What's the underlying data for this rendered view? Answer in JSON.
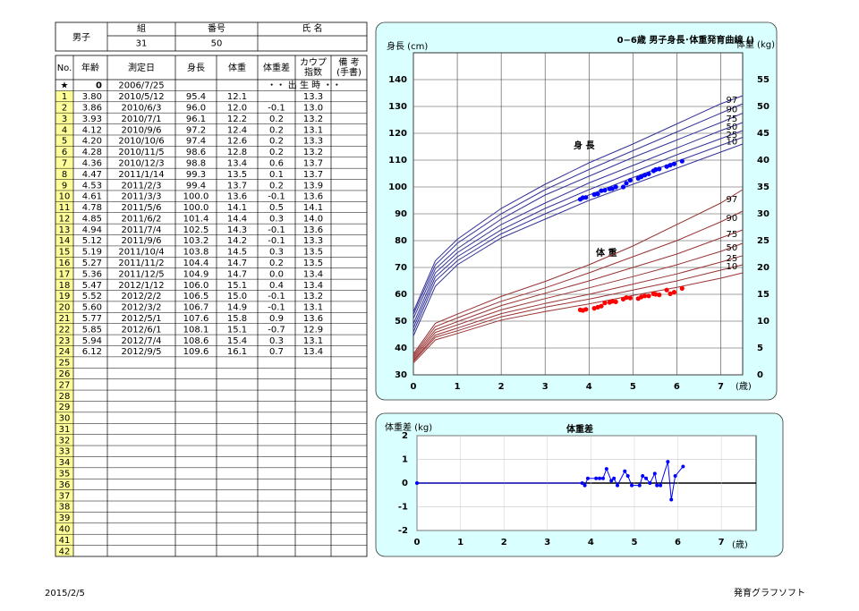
{
  "header": {
    "title": "男子",
    "fields": [
      {
        "label": "組",
        "value": "31"
      },
      {
        "label": "番号",
        "value": "50"
      },
      {
        "label": "氏 名"
      }
    ]
  },
  "table": {
    "columns": [
      "No.",
      "年齢",
      "測定日",
      "身長",
      "体重",
      "体重差",
      [
        "カウプ",
        "指数"
      ],
      [
        "備 考",
        "(手書)"
      ]
    ],
    "birth_row": {
      "no": "★",
      "age": "0",
      "date": "2006/7/25",
      "note": "・・ 出 生 時 ・・"
    },
    "rows": [
      [
        "1",
        "3.80",
        "2010/5/12",
        "95.4",
        "12.1",
        null,
        "13.3"
      ],
      [
        "2",
        "3.86",
        "2010/6/3",
        "96.0",
        "12.0",
        "-0.1",
        "13.0"
      ],
      [
        "3",
        "3.93",
        "2010/7/1",
        "96.1",
        "12.2",
        "0.2",
        "13.2"
      ],
      [
        "4",
        "4.12",
        "2010/9/6",
        "97.2",
        "12.4",
        "0.2",
        "13.1"
      ],
      [
        "5",
        "4.20",
        "2010/10/6",
        "97.4",
        "12.6",
        "0.2",
        "13.3"
      ],
      [
        "6",
        "4.28",
        "2010/11/5",
        "98.6",
        "12.8",
        "0.2",
        "13.2"
      ],
      [
        "7",
        "4.36",
        "2010/12/3",
        "98.8",
        "13.4",
        "0.6",
        "13.7"
      ],
      [
        "8",
        "4.47",
        "2011/1/14",
        "99.3",
        "13.5",
        "0.1",
        "13.7"
      ],
      [
        "9",
        "4.53",
        "2011/2/3",
        "99.4",
        "13.7",
        "0.2",
        "13.9"
      ],
      [
        "10",
        "4.61",
        "2011/3/3",
        "100.0",
        "13.6",
        "-0.1",
        "13.6"
      ],
      [
        "11",
        "4.78",
        "2011/5/6",
        "100.0",
        "14.1",
        "0.5",
        "14.1"
      ],
      [
        "12",
        "4.85",
        "2011/6/2",
        "101.4",
        "14.4",
        "0.3",
        "14.0"
      ],
      [
        "13",
        "4.94",
        "2011/7/4",
        "102.5",
        "14.3",
        "-0.1",
        "13.6"
      ],
      [
        "14",
        "5.12",
        "2011/9/6",
        "103.2",
        "14.2",
        "-0.1",
        "13.3"
      ],
      [
        "15",
        "5.19",
        "2011/10/4",
        "103.8",
        "14.5",
        "0.3",
        "13.5"
      ],
      [
        "16",
        "5.27",
        "2011/11/2",
        "104.4",
        "14.7",
        "0.2",
        "13.5"
      ],
      [
        "17",
        "5.36",
        "2011/12/5",
        "104.9",
        "14.7",
        "0.0",
        "13.4"
      ],
      [
        "18",
        "5.47",
        "2012/1/12",
        "106.0",
        "15.1",
        "0.4",
        "13.4"
      ],
      [
        "19",
        "5.52",
        "2012/2/2",
        "106.5",
        "15.0",
        "-0.1",
        "13.2"
      ],
      [
        "20",
        "5.60",
        "2012/3/2",
        "106.7",
        "14.9",
        "-0.1",
        "13.1"
      ],
      [
        "21",
        "5.77",
        "2012/5/1",
        "107.6",
        "15.8",
        "0.9",
        "13.6"
      ],
      [
        "22",
        "5.85",
        "2012/6/1",
        "108.1",
        "15.1",
        "-0.7",
        "12.9"
      ],
      [
        "23",
        "5.94",
        "2012/7/4",
        "108.6",
        "15.4",
        "0.3",
        "13.1"
      ],
      [
        "24",
        "6.12",
        "2012/9/5",
        "109.6",
        "16.1",
        "0.7",
        "13.4"
      ]
    ],
    "empty_rows": [
      "25",
      "26",
      "27",
      "28",
      "29",
      "30",
      "31",
      "32",
      "33",
      "34",
      "35",
      "36",
      "37",
      "38",
      "39",
      "40",
      "41",
      "42"
    ]
  },
  "growth_chart": {
    "type": "line",
    "title": "0−6歳 男子身長･体重発育曲線 ()",
    "y_label": "身長 (cm)",
    "y2_label": "体重 (kg)",
    "x_unit": "(歳)",
    "height_label": "身 長",
    "weight_label": "体 重",
    "xlim": [
      0,
      7.5
    ],
    "xticks": [
      0,
      1,
      2,
      3,
      4,
      5,
      6,
      7
    ],
    "ylim": [
      30,
      150
    ],
    "yticks": [
      30,
      40,
      50,
      60,
      70,
      80,
      90,
      100,
      110,
      120,
      130,
      140
    ],
    "y2lim": [
      0,
      60
    ],
    "y2ticks": [
      0,
      5,
      10,
      15,
      20,
      25,
      30,
      35,
      40,
      45,
      50,
      55
    ],
    "grid": true,
    "curve_x": [
      0,
      0.5,
      1,
      2,
      3,
      4,
      5,
      6,
      7,
      7.5
    ],
    "height_color": "#333399",
    "weight_color": "#993333",
    "height_curves": [
      {
        "name": "97",
        "values": [
          53.5,
          72.5,
          80.5,
          92,
          101,
          109,
          116,
          123.5,
          131,
          134
        ]
      },
      {
        "name": "90",
        "values": [
          52.5,
          71,
          79,
          90,
          99,
          106.5,
          113.5,
          120.5,
          127.5,
          131
        ]
      },
      {
        "name": "75",
        "values": [
          51,
          69.5,
          77,
          88,
          97,
          104,
          111,
          117.5,
          124,
          127.5
        ]
      },
      {
        "name": "50",
        "values": [
          49,
          68,
          75.5,
          86,
          94,
          101.5,
          108,
          114.5,
          121,
          124
        ]
      },
      {
        "name": "25",
        "values": [
          47.5,
          66.5,
          74,
          84,
          92,
          99,
          105.5,
          112,
          118,
          121
        ]
      },
      {
        "name": "10",
        "values": [
          46,
          65,
          72.5,
          82.5,
          90,
          97,
          103.5,
          109.5,
          115.5,
          118.5
        ]
      },
      {
        "values": [
          44.5,
          63,
          71,
          81,
          88,
          95,
          101,
          107,
          113,
          116
        ]
      }
    ],
    "weight_curves": [
      {
        "name": "97",
        "values": [
          3.9,
          9.6,
          11.3,
          14.6,
          17.4,
          20.5,
          24,
          28,
          32,
          34.5
        ]
      },
      {
        "name": "90",
        "values": [
          3.6,
          9,
          10.6,
          13.7,
          16.2,
          19,
          22,
          25,
          28.5,
          30.5
        ]
      },
      {
        "name": "75",
        "values": [
          3.3,
          8.4,
          9.9,
          12.9,
          15.2,
          17.5,
          20,
          22.5,
          25.5,
          27
        ]
      },
      {
        "name": "50",
        "values": [
          3.0,
          7.9,
          9.3,
          12.1,
          14.2,
          16.2,
          18.3,
          20.5,
          23,
          24.5
        ]
      },
      {
        "name": "25",
        "values": [
          2.7,
          7.4,
          8.7,
          11.4,
          13.3,
          15,
          16.9,
          18.8,
          21,
          22.2
        ]
      },
      {
        "name": "10",
        "values": [
          2.5,
          7,
          8.2,
          10.8,
          12.6,
          14.1,
          15.8,
          17.5,
          19.5,
          20.5
        ]
      },
      {
        "values": [
          2.2,
          6.5,
          7.7,
          10.2,
          11.8,
          13.2,
          14.8,
          16.3,
          18,
          19
        ]
      }
    ],
    "x": [
      3.8,
      3.86,
      3.93,
      4.12,
      4.2,
      4.28,
      4.36,
      4.47,
      4.53,
      4.61,
      4.78,
      4.85,
      4.94,
      5.12,
      5.19,
      5.27,
      5.36,
      5.47,
      5.52,
      5.6,
      5.77,
      5.85,
      5.94,
      6.12
    ],
    "series": [
      {
        "color": "#0000ff",
        "values": [
          95.4,
          96.0,
          96.1,
          97.2,
          97.4,
          98.6,
          98.8,
          99.3,
          99.4,
          100.0,
          100.0,
          101.4,
          102.5,
          103.2,
          103.8,
          104.4,
          104.9,
          106.0,
          106.5,
          106.7,
          107.6,
          108.1,
          108.6,
          109.6
        ]
      },
      {
        "color": "#ff0000",
        "axis": "y2",
        "values": [
          12.1,
          12.0,
          12.2,
          12.4,
          12.6,
          12.8,
          13.4,
          13.5,
          13.7,
          13.6,
          14.1,
          14.4,
          14.3,
          14.2,
          14.5,
          14.7,
          14.7,
          15.1,
          15.0,
          14.9,
          15.8,
          15.1,
          15.4,
          16.1
        ]
      }
    ]
  },
  "diff_chart": {
    "type": "line",
    "title": "体重差",
    "y_label": "体重差 (kg)",
    "x_unit": "(歳)",
    "xlim": [
      0,
      7.8
    ],
    "xticks": [
      0,
      1,
      2,
      3,
      4,
      5,
      6,
      7
    ],
    "ylim": [
      -2,
      2
    ],
    "yticks": [
      -2,
      -1,
      0,
      1,
      2
    ],
    "color": "#0000ff",
    "x": [
      0,
      3.8,
      3.86,
      3.93,
      4.12,
      4.2,
      4.28,
      4.36,
      4.47,
      4.53,
      4.61,
      4.78,
      4.85,
      4.94,
      5.12,
      5.19,
      5.27,
      5.36,
      5.47,
      5.52,
      5.6,
      5.77,
      5.85,
      5.94,
      6.12
    ],
    "values": [
      0,
      0,
      -0.1,
      0.2,
      0.2,
      0.2,
      0.2,
      0.6,
      0.1,
      0.2,
      -0.1,
      0.5,
      0.3,
      -0.1,
      -0.1,
      0.3,
      0.2,
      0.0,
      0.4,
      -0.1,
      -0.1,
      0.9,
      -0.7,
      0.3,
      0.7
    ]
  },
  "footer": {
    "date": "2015/2/5",
    "software": "発育グラフソフト"
  }
}
